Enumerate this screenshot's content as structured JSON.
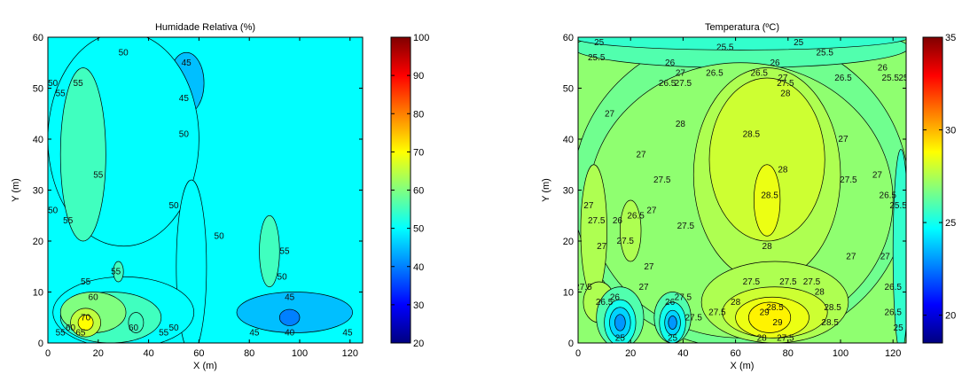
{
  "chart_data": [
    {
      "type": "heatmap",
      "subtype": "filled-contour",
      "title": "Humidade Relativa (%)",
      "xlabel": "X (m)",
      "ylabel": "Y (m)",
      "xlim": [
        0,
        125
      ],
      "ylim": [
        0,
        60
      ],
      "x_ticks": [
        "0",
        "20",
        "40",
        "60",
        "80",
        "100",
        "120"
      ],
      "y_ticks": [
        "0",
        "10",
        "20",
        "30",
        "40",
        "50",
        "60"
      ],
      "colorbar": {
        "min": 20,
        "max": 100,
        "colormap": "jet",
        "ticks": [
          "20",
          "30",
          "40",
          "50",
          "60",
          "70",
          "80",
          "90",
          "100"
        ]
      },
      "background_level": 50,
      "regions": [
        {
          "level": 45,
          "cx": 55,
          "cy": 51,
          "rx": 7,
          "ry": 6
        },
        {
          "level": 45,
          "cx": 98,
          "cy": 6,
          "rx": 23,
          "ry": 4
        },
        {
          "level": 40,
          "cx": 96,
          "cy": 5,
          "rx": 4,
          "ry": 1.6
        },
        {
          "level": 50,
          "cx": 30,
          "cy": 40,
          "rx": 30,
          "ry": 21
        },
        {
          "level": 50,
          "cx": 57,
          "cy": 15,
          "rx": 6,
          "ry": 17
        },
        {
          "level": 50,
          "cx": 30,
          "cy": 6,
          "rx": 28,
          "ry": 7
        },
        {
          "level": 55,
          "cx": 14,
          "cy": 37,
          "rx": 9,
          "ry": 17
        },
        {
          "level": 55,
          "cx": 25,
          "cy": 5,
          "rx": 20,
          "ry": 5
        },
        {
          "level": 60,
          "cx": 18,
          "cy": 6,
          "rx": 13,
          "ry": 4
        },
        {
          "level": 65,
          "cx": 15,
          "cy": 4,
          "rx": 6,
          "ry": 2.8
        },
        {
          "level": 70,
          "cx": 15,
          "cy": 4,
          "rx": 3,
          "ry": 1.5
        },
        {
          "level": 55,
          "cx": 88,
          "cy": 18,
          "rx": 4,
          "ry": 7
        },
        {
          "level": 55,
          "cx": 28,
          "cy": 14,
          "rx": 2,
          "ry": 2
        },
        {
          "level": 55,
          "cx": 35,
          "cy": 4,
          "rx": 3,
          "ry": 2
        }
      ],
      "contour_labels": [
        {
          "x": 30,
          "y": 57,
          "text": "50"
        },
        {
          "x": 55,
          "y": 55,
          "text": "45"
        },
        {
          "x": 54,
          "y": 48,
          "text": "45"
        },
        {
          "x": 12,
          "y": 51,
          "text": "55"
        },
        {
          "x": 5,
          "y": 49,
          "text": "55"
        },
        {
          "x": 2,
          "y": 51,
          "text": "50"
        },
        {
          "x": 54,
          "y": 41,
          "text": "50"
        },
        {
          "x": 20,
          "y": 33,
          "text": "55"
        },
        {
          "x": 2,
          "y": 26,
          "text": "50"
        },
        {
          "x": 8,
          "y": 24,
          "text": "55"
        },
        {
          "x": 50,
          "y": 27,
          "text": "50"
        },
        {
          "x": 68,
          "y": 21,
          "text": "50"
        },
        {
          "x": 94,
          "y": 18,
          "text": "55"
        },
        {
          "x": 93,
          "y": 13,
          "text": "50"
        },
        {
          "x": 27,
          "y": 14,
          "text": "55"
        },
        {
          "x": 15,
          "y": 12,
          "text": "55"
        },
        {
          "x": 18,
          "y": 9,
          "text": "60"
        },
        {
          "x": 96,
          "y": 9,
          "text": "45"
        },
        {
          "x": 9,
          "y": 3,
          "text": "60"
        },
        {
          "x": 15,
          "y": 5,
          "text": "70"
        },
        {
          "x": 34,
          "y": 3,
          "text": "60"
        },
        {
          "x": 46,
          "y": 2,
          "text": "55"
        },
        {
          "x": 50,
          "y": 3,
          "text": "50"
        },
        {
          "x": 5,
          "y": 2,
          "text": "55"
        },
        {
          "x": 13,
          "y": 2,
          "text": "65"
        },
        {
          "x": 96,
          "y": 2,
          "text": "40"
        },
        {
          "x": 82,
          "y": 2,
          "text": "45"
        },
        {
          "x": 119,
          "y": 2,
          "text": "45"
        }
      ]
    },
    {
      "type": "heatmap",
      "subtype": "filled-contour",
      "title": "Temperatura (ºC)",
      "xlabel": "X (m)",
      "ylabel": "Y (m)",
      "xlim": [
        0,
        125
      ],
      "ylim": [
        0,
        60
      ],
      "x_ticks": [
        "0",
        "20",
        "40",
        "60",
        "80",
        "100",
        "120"
      ],
      "y_ticks": [
        "0",
        "10",
        "20",
        "30",
        "40",
        "50",
        "60"
      ],
      "colorbar": {
        "min": 18.5,
        "max": 35,
        "colormap": "jet",
        "ticks": [
          "20",
          "25",
          "30",
          "35"
        ]
      },
      "background_level": 27,
      "regions": [
        {
          "level": 26.5,
          "cx": 62,
          "cy": 30,
          "rx": 64,
          "ry": 31
        },
        {
          "level": 26,
          "cx": 62,
          "cy": 58,
          "rx": 64,
          "ry": 4
        },
        {
          "level": 25.5,
          "cx": 62,
          "cy": 60,
          "rx": 64,
          "ry": 2.5
        },
        {
          "level": 27,
          "cx": 62,
          "cy": 28,
          "rx": 58,
          "ry": 27
        },
        {
          "level": 27.5,
          "cx": 72,
          "cy": 33,
          "rx": 28,
          "ry": 21
        },
        {
          "level": 28,
          "cx": 72,
          "cy": 36,
          "rx": 22,
          "ry": 16
        },
        {
          "level": 28.5,
          "cx": 72,
          "cy": 28,
          "rx": 5,
          "ry": 7
        },
        {
          "level": 27.5,
          "cx": 75,
          "cy": 8,
          "rx": 28,
          "ry": 8
        },
        {
          "level": 28,
          "cx": 75,
          "cy": 6,
          "rx": 20,
          "ry": 5
        },
        {
          "level": 28.5,
          "cx": 74,
          "cy": 5,
          "rx": 14,
          "ry": 4
        },
        {
          "level": 29,
          "cx": 73,
          "cy": 5,
          "rx": 8,
          "ry": 3
        },
        {
          "level": 27.5,
          "cx": 6,
          "cy": 22,
          "rx": 5,
          "ry": 13
        },
        {
          "level": 27.5,
          "cx": 20,
          "cy": 22,
          "rx": 4,
          "ry": 6
        },
        {
          "level": 27.5,
          "cx": 8,
          "cy": 8,
          "rx": 6,
          "ry": 4
        },
        {
          "level": 26,
          "cx": 16,
          "cy": 5,
          "rx": 9,
          "ry": 6
        },
        {
          "level": 25,
          "cx": 16,
          "cy": 4,
          "rx": 6,
          "ry": 4.5
        },
        {
          "level": 24,
          "cx": 16,
          "cy": 4,
          "rx": 4,
          "ry": 3
        },
        {
          "level": 23,
          "cx": 16,
          "cy": 4,
          "rx": 2,
          "ry": 1.6
        },
        {
          "level": 26,
          "cx": 36,
          "cy": 5,
          "rx": 7,
          "ry": 5
        },
        {
          "level": 25,
          "cx": 36,
          "cy": 4,
          "rx": 5,
          "ry": 4
        },
        {
          "level": 24,
          "cx": 36,
          "cy": 4,
          "rx": 3,
          "ry": 2.4
        },
        {
          "level": 23,
          "cx": 36,
          "cy": 4,
          "rx": 1.6,
          "ry": 1.3
        },
        {
          "level": 25.5,
          "cx": 123,
          "cy": 18,
          "rx": 3,
          "ry": 20
        }
      ],
      "contour_labels": [
        {
          "x": 8,
          "y": 59,
          "text": "25"
        },
        {
          "x": 7,
          "y": 56,
          "text": "25.5"
        },
        {
          "x": 56,
          "y": 58,
          "text": "25.5"
        },
        {
          "x": 84,
          "y": 59,
          "text": "25"
        },
        {
          "x": 94,
          "y": 57,
          "text": "25.5"
        },
        {
          "x": 35,
          "y": 55,
          "text": "26"
        },
        {
          "x": 52,
          "y": 53,
          "text": "26.5"
        },
        {
          "x": 69,
          "y": 53,
          "text": "26.5"
        },
        {
          "x": 75,
          "y": 55,
          "text": "26"
        },
        {
          "x": 34,
          "y": 51,
          "text": "26.5"
        },
        {
          "x": 39,
          "y": 53,
          "text": "27"
        },
        {
          "x": 40,
          "y": 51,
          "text": "27.5"
        },
        {
          "x": 78,
          "y": 52,
          "text": "27"
        },
        {
          "x": 79,
          "y": 51,
          "text": "27.5"
        },
        {
          "x": 79,
          "y": 49,
          "text": "28"
        },
        {
          "x": 101,
          "y": 52,
          "text": "26.5"
        },
        {
          "x": 116,
          "y": 54,
          "text": "26"
        },
        {
          "x": 119,
          "y": 52,
          "text": "25.5"
        },
        {
          "x": 124,
          "y": 52,
          "text": "25"
        },
        {
          "x": 12,
          "y": 45,
          "text": "27"
        },
        {
          "x": 39,
          "y": 43,
          "text": "28"
        },
        {
          "x": 66,
          "y": 41,
          "text": "28.5"
        },
        {
          "x": 101,
          "y": 40,
          "text": "27"
        },
        {
          "x": 24,
          "y": 37,
          "text": "27"
        },
        {
          "x": 78,
          "y": 34,
          "text": "28"
        },
        {
          "x": 32,
          "y": 32,
          "text": "27.5"
        },
        {
          "x": 103,
          "y": 32,
          "text": "27.5"
        },
        {
          "x": 114,
          "y": 33,
          "text": "27"
        },
        {
          "x": 4,
          "y": 27,
          "text": "27"
        },
        {
          "x": 73,
          "y": 29,
          "text": "28.5"
        },
        {
          "x": 118,
          "y": 29,
          "text": "26.5"
        },
        {
          "x": 7,
          "y": 24,
          "text": "27.5"
        },
        {
          "x": 15,
          "y": 24,
          "text": "26"
        },
        {
          "x": 22,
          "y": 25,
          "text": "26.5"
        },
        {
          "x": 28,
          "y": 26,
          "text": "27"
        },
        {
          "x": 41,
          "y": 23,
          "text": "27.5"
        },
        {
          "x": 122,
          "y": 27,
          "text": "25.5"
        },
        {
          "x": 72,
          "y": 19,
          "text": "28"
        },
        {
          "x": 9,
          "y": 19,
          "text": "27"
        },
        {
          "x": 18,
          "y": 20,
          "text": "27.5"
        },
        {
          "x": 27,
          "y": 15,
          "text": "27"
        },
        {
          "x": 104,
          "y": 17,
          "text": "27"
        },
        {
          "x": 117,
          "y": 17,
          "text": "27"
        },
        {
          "x": 2,
          "y": 11,
          "text": "27.5"
        },
        {
          "x": 120,
          "y": 11,
          "text": "26.5"
        },
        {
          "x": 66,
          "y": 12,
          "text": "27.5"
        },
        {
          "x": 80,
          "y": 12,
          "text": "27.5"
        },
        {
          "x": 89,
          "y": 12,
          "text": "27.5"
        },
        {
          "x": 25,
          "y": 11,
          "text": "27"
        },
        {
          "x": 40,
          "y": 9,
          "text": "27.5"
        },
        {
          "x": 92,
          "y": 10,
          "text": "28"
        },
        {
          "x": 60,
          "y": 8,
          "text": "28"
        },
        {
          "x": 75,
          "y": 7,
          "text": "28.5"
        },
        {
          "x": 97,
          "y": 7,
          "text": "28.5"
        },
        {
          "x": 53,
          "y": 6,
          "text": "27.5"
        },
        {
          "x": 71,
          "y": 6,
          "text": "29"
        },
        {
          "x": 44,
          "y": 5,
          "text": "27.5"
        },
        {
          "x": 14,
          "y": 9,
          "text": "26"
        },
        {
          "x": 10,
          "y": 8,
          "text": "26.5"
        },
        {
          "x": 35,
          "y": 8,
          "text": "26"
        },
        {
          "x": 76,
          "y": 4,
          "text": "29"
        },
        {
          "x": 96,
          "y": 4,
          "text": "28.5"
        },
        {
          "x": 120,
          "y": 6,
          "text": "26.5"
        },
        {
          "x": 122,
          "y": 3,
          "text": "25"
        },
        {
          "x": 70,
          "y": 1,
          "text": "28"
        },
        {
          "x": 79,
          "y": 1,
          "text": "27.5"
        },
        {
          "x": 16,
          "y": 1,
          "text": "25"
        },
        {
          "x": 36,
          "y": 1,
          "text": "25"
        }
      ]
    }
  ]
}
